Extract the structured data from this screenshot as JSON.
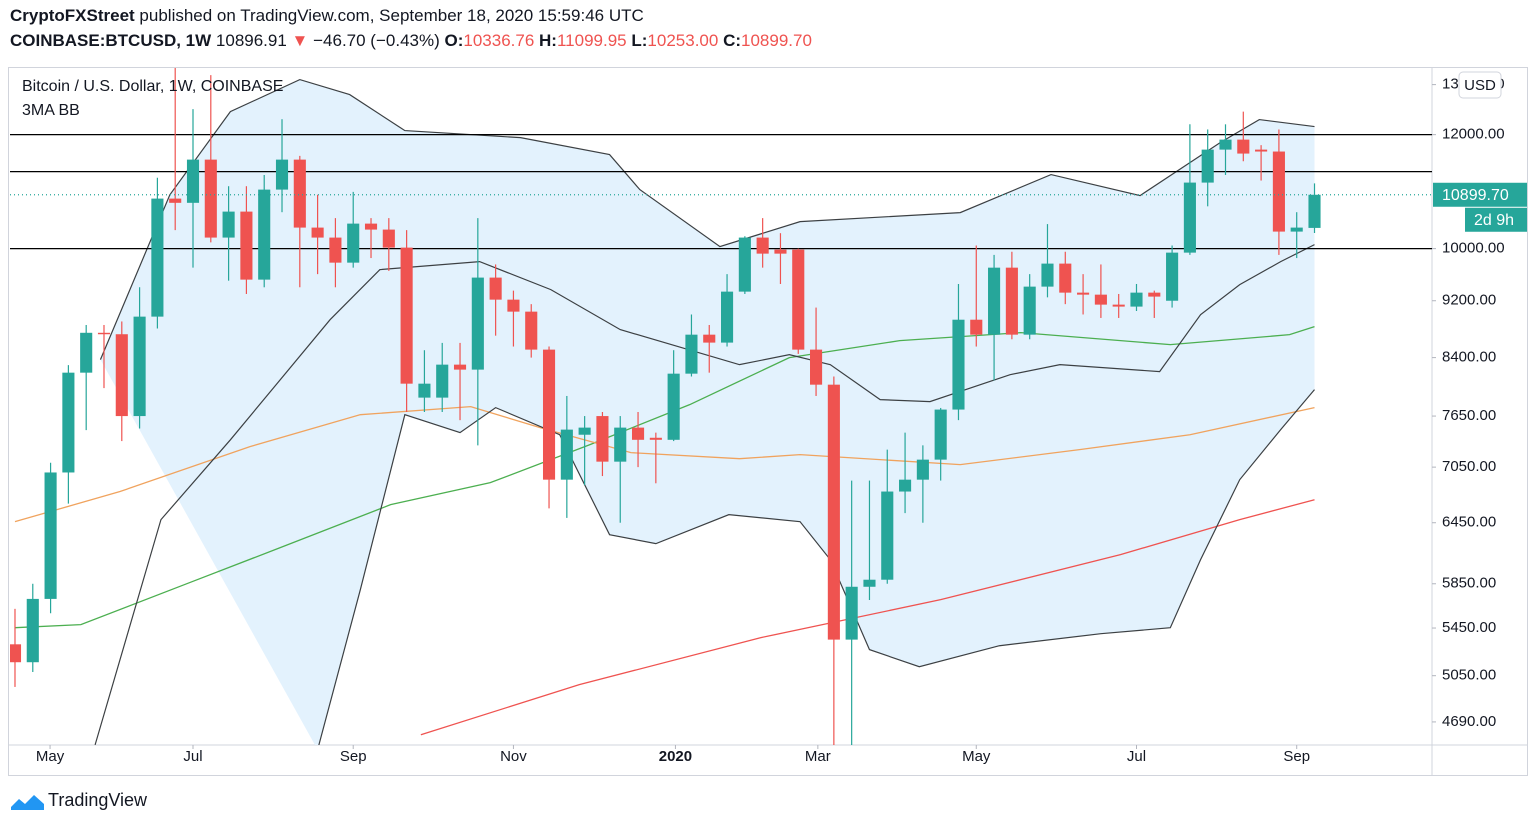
{
  "header": {
    "author": "CryptoFXStreet",
    "published": "published on TradingView.com, September 18, 2020 15:59:46 UTC"
  },
  "quote": {
    "symbol": "COINBASE:BTCUSD, 1W",
    "last": "10896.91",
    "arrow": "▼",
    "change": "−46.70 (−0.43%)",
    "open_label": "O:",
    "open": "10336.76",
    "high_label": "H:",
    "high": "11099.95",
    "low_label": "L:",
    "low": "10253.00",
    "close_label": "C:",
    "close": "10899.70"
  },
  "chart_data": {
    "type": "candlestick",
    "title": "Bitcoin / U.S. Dollar, 1W, COINBASE",
    "indicator": "3MA BB",
    "currency": "USD",
    "up_color": "#26a69a",
    "down_color": "#ef5350",
    "log_scale": true,
    "ylim": [
      4520,
      13350
    ],
    "yticks": [
      {
        "value": 4690,
        "label": "4690.00"
      },
      {
        "value": 5050,
        "label": "5050.00"
      },
      {
        "value": 5450,
        "label": "5450.00"
      },
      {
        "value": 5850,
        "label": "5850.00"
      },
      {
        "value": 6450,
        "label": "6450.00"
      },
      {
        "value": 7050,
        "label": "7050.00"
      },
      {
        "value": 7650,
        "label": "7650.00"
      },
      {
        "value": 8400,
        "label": "8400.00"
      },
      {
        "value": 9200,
        "label": "9200.00"
      },
      {
        "value": 10000,
        "label": "10000.00"
      },
      {
        "value": 12000,
        "label": "12000.00"
      },
      {
        "value": 13000,
        "label": "13000.00"
      }
    ],
    "xlim": [
      -0.28,
      79.6
    ],
    "xticks": [
      {
        "value": 1.97,
        "label": "May"
      },
      {
        "value": 10.0,
        "label": "Jul"
      },
      {
        "value": 19.0,
        "label": "Sep"
      },
      {
        "value": 28.0,
        "label": "Nov"
      },
      {
        "value": 37.1,
        "label": "2020"
      },
      {
        "value": 45.1,
        "label": "Mar"
      },
      {
        "value": 54.0,
        "label": "May"
      },
      {
        "value": 63.0,
        "label": "Jul"
      },
      {
        "value": 72.0,
        "label": "Sep"
      }
    ],
    "open": [
      5310,
      5160,
      5710,
      6990,
      8200,
      8740,
      8720,
      7650,
      8969,
      10833,
      10760,
      11530,
      10178,
      10610,
      9516,
      10990,
      11530,
      10342,
      10178,
      9778,
      10408,
      10309,
      10016,
      7879,
      7879,
      8306,
      8240,
      9547,
      9216,
      9041,
      8508,
      6910,
      7425,
      7650,
      7112,
      7510,
      7389,
      7365,
      8187,
      8714,
      8604,
      9335,
      10178,
      9984,
      9984,
      8508,
      8044,
      5350,
      5822,
      5888,
      6780,
      6910,
      7135,
      7730,
      8925,
      8714,
      9700,
      8714,
      9410,
      9763,
      9320,
      9290,
      9143,
      9114,
      9320,
      9200,
      9936,
      11114,
      11716,
      11905,
      11716,
      11680,
      10276,
      10336.76
    ],
    "high": [
      5620,
      5850,
      7100,
      8300,
      8850,
      8850,
      8900,
      9400,
      11200,
      13880,
      12500,
      13200,
      11050,
      11050,
      11250,
      12300,
      11600,
      10900,
      10500,
      10950,
      10500,
      10500,
      10300,
      8500,
      8600,
      8600,
      10500,
      9750,
      9350,
      9150,
      8550,
      7900,
      7650,
      7700,
      7650,
      7700,
      7450,
      8500,
      9000,
      8850,
      9600,
      10200,
      10500,
      10250,
      10000,
      9100,
      8150,
      6900,
      6900,
      7250,
      7450,
      7300,
      7750,
      9450,
      10050,
      9900,
      9950,
      9600,
      10400,
      9950,
      9600,
      9750,
      9300,
      9450,
      9350,
      10050,
      12200,
      12100,
      12200,
      12450,
      11800,
      12100,
      10600,
      11099.95
    ],
    "low": [
      4960,
      5080,
      5580,
      6650,
      7480,
      8000,
      7350,
      7500,
      8800,
      10300,
      9700,
      10100,
      9500,
      9300,
      9400,
      10600,
      9400,
      9600,
      9400,
      9700,
      9850,
      9650,
      7700,
      7700,
      7700,
      7600,
      7300,
      8700,
      8550,
      8400,
      6600,
      6500,
      6850,
      6950,
      6450,
      7050,
      6870,
      7350,
      8150,
      8200,
      8550,
      9300,
      9700,
      9450,
      8450,
      7900,
      3850,
      4500,
      5700,
      5850,
      6550,
      6450,
      6900,
      7600,
      8550,
      8100,
      8650,
      8650,
      9250,
      9150,
      9000,
      8950,
      8950,
      9050,
      8950,
      9100,
      9900,
      10700,
      11250,
      11500,
      11150,
      9900,
      9850,
      10253
    ],
    "close": [
      5160,
      5710,
      6990,
      8200,
      8740,
      8720,
      7650,
      8969,
      10833,
      10760,
      11530,
      10178,
      10610,
      9516,
      10990,
      11530,
      10342,
      10178,
      9778,
      10408,
      10309,
      10016,
      8057,
      8057,
      8306,
      8240,
      9547,
      9216,
      9041,
      8508,
      6910,
      7486,
      7510,
      7112,
      7510,
      7365,
      7365,
      8187,
      8714,
      8604,
      9335,
      10178,
      9920,
      9920,
      8508,
      8044,
      5350,
      5822,
      5888,
      6780,
      6910,
      7135,
      7730,
      8925,
      8714,
      9700,
      8714,
      9410,
      9763,
      9320,
      9290,
      9143,
      9114,
      9320,
      9261,
      9936,
      11114,
      11716,
      11905,
      11642,
      11680,
      10276,
      10342,
      10899.7
    ],
    "bands": {
      "color": "#3c4043",
      "fill": "#e3f2fd",
      "upper": {
        "x": [
          4.8,
          8.7,
          12.1,
          16.0,
          18.8,
          21.9,
          28.4,
          33.4,
          35.1,
          39.6,
          44.1,
          53.1,
          58.2,
          63.2,
          67.7,
          69.9,
          73.0
        ],
        "values": [
          8373,
          10900,
          12450,
          13105,
          12794,
          12078,
          11943,
          11623,
          10990,
          10032,
          10441,
          10593,
          11257,
          10885,
          11848,
          12293,
          12156
        ]
      },
      "middle": {
        "x": [
          4.5,
          8.2,
          12.1,
          17.7,
          20.5,
          26.1,
          30.1,
          34.0,
          40.7,
          43.5,
          45.8,
          48.6,
          51.4,
          55.9,
          58.7,
          64.3,
          66.6,
          68.8,
          71.1,
          73.0
        ],
        "values": [
          4521,
          6482,
          7365,
          8925,
          9670,
          9794,
          9365,
          8785,
          8306,
          8440,
          8306,
          7854,
          7829,
          8174,
          8306,
          8214,
          8998,
          9440,
          9794,
          10064
        ]
      },
      "lower": {
        "x": [
          17.0,
          19.4,
          21.9,
          25.0,
          27.0,
          30.6,
          33.4,
          36.0,
          40.1,
          44.1,
          45.8,
          48.0,
          50.8,
          55.3,
          61.0,
          64.9,
          66.6,
          68.8,
          71.1,
          73.0
        ],
        "values": [
          4486,
          5795,
          7667,
          7450,
          7754,
          7425,
          6328,
          6238,
          6534,
          6461,
          6080,
          5265,
          5123,
          5298,
          5401,
          5453,
          6080,
          6910,
          7486,
          7980
        ]
      }
    },
    "moving_averages": [
      {
        "color": "#4caf50",
        "x": [
          0,
          3.7,
          9.8,
          14.9,
          21.1,
          26.7,
          32.3,
          37.9,
          43.5,
          49.7,
          56.5,
          64.9,
          71.6,
          73.0
        ],
        "values": [
          5453,
          5480,
          5860,
          6198,
          6639,
          6877,
          7308,
          7791,
          8400,
          8631,
          8742,
          8576,
          8714,
          8827
        ]
      },
      {
        "color": "#f0a35e",
        "x": [
          0,
          5.9,
          13.2,
          19.4,
          25.6,
          29.5,
          34.6,
          40.7,
          44.1,
          53.1,
          59.8,
          66.0,
          73.0
        ],
        "values": [
          6461,
          6780,
          7285,
          7667,
          7766,
          7510,
          7215,
          7146,
          7192,
          7078,
          7250,
          7425,
          7754
        ]
      },
      {
        "color": "#ef5350",
        "x": [
          22.8,
          31.7,
          41.9,
          52.0,
          62.1,
          68.8,
          73.0
        ],
        "values": [
          4595,
          4978,
          5367,
          5703,
          6129,
          6482,
          6692
        ]
      }
    ],
    "levels": [
      12000,
      11311,
      10000
    ],
    "last_price": {
      "value": 10899.7,
      "label": "10899.70"
    },
    "countdown": "2d 9h"
  },
  "footer": {
    "brand": "TradingView"
  }
}
